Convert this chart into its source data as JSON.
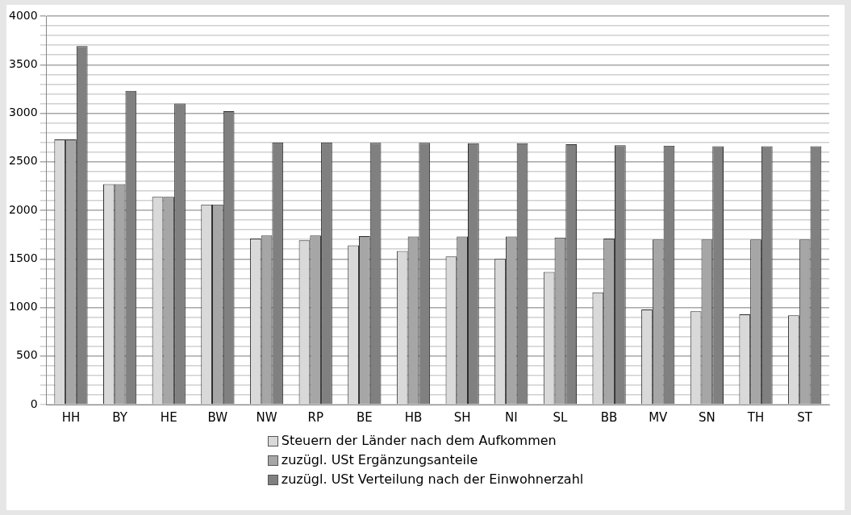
{
  "chart_data": {
    "type": "bar",
    "categories": [
      "HH",
      "BY",
      "HE",
      "BW",
      "NW",
      "RP",
      "BE",
      "HB",
      "SH",
      "NI",
      "SL",
      "BB",
      "MV",
      "SN",
      "TH",
      "ST"
    ],
    "series": [
      {
        "name": "Steuern der Länder nach dem Aufkommen",
        "color": "#d9d9d9",
        "values": [
          2730,
          2270,
          2140,
          2060,
          1710,
          1690,
          1640,
          1580,
          1525,
          1500,
          1365,
          1155,
          980,
          960,
          930,
          920
        ]
      },
      {
        "name": "zuzügl. USt Ergänzungsanteile",
        "color": "#a6a6a6",
        "values": [
          2730,
          2270,
          2140,
          2060,
          1740,
          1740,
          1735,
          1730,
          1730,
          1730,
          1720,
          1710,
          1700,
          1700,
          1700,
          1700
        ]
      },
      {
        "name": "zuzügl. USt Verteilung nach der Einwohnerzahl",
        "color": "#808080",
        "values": [
          3690,
          3230,
          3100,
          3020,
          2700,
          2700,
          2695,
          2695,
          2690,
          2690,
          2680,
          2670,
          2665,
          2660,
          2660,
          2660
        ]
      }
    ],
    "ylim": [
      0,
      4000
    ],
    "yticks": [
      0,
      {
        "value": 100,
        "label": null
      },
      {
        "value": 200,
        "label": null
      },
      {
        "value": 300,
        "label": null
      },
      {
        "value": 400,
        "label": null
      },
      500,
      {
        "value": 600,
        "label": null
      },
      {
        "value": 700,
        "label": null
      },
      {
        "value": 800,
        "label": null
      },
      {
        "value": 900,
        "label": null
      },
      1000,
      {
        "value": 1100,
        "label": null
      },
      {
        "value": 1200,
        "label": null
      },
      {
        "value": 1300,
        "label": null
      },
      {
        "value": 1400,
        "label": null
      },
      1500,
      {
        "value": 1600,
        "label": null
      },
      {
        "value": 1700,
        "label": null
      },
      {
        "value": 1800,
        "label": null
      },
      {
        "value": 1900,
        "label": null
      },
      2000,
      {
        "value": 2100,
        "label": null
      },
      {
        "value": 2200,
        "label": null
      },
      {
        "value": 2300,
        "label": null
      },
      {
        "value": 2400,
        "label": null
      },
      2500,
      {
        "value": 2600,
        "label": null
      },
      {
        "value": 2700,
        "label": null
      },
      {
        "value": 2800,
        "label": null
      },
      {
        "value": 2900,
        "label": null
      },
      3000,
      {
        "value": 3100,
        "label": null
      },
      {
        "value": 3200,
        "label": null
      },
      {
        "value": 3300,
        "label": null
      },
      {
        "value": 3400,
        "label": null
      },
      3500,
      {
        "value": 3600,
        "label": null
      },
      {
        "value": 3700,
        "label": null
      },
      {
        "value": 3800,
        "label": null
      },
      {
        "value": 3900,
        "label": null
      },
      4000
    ],
    "grid": "y",
    "legend": "bottom"
  }
}
